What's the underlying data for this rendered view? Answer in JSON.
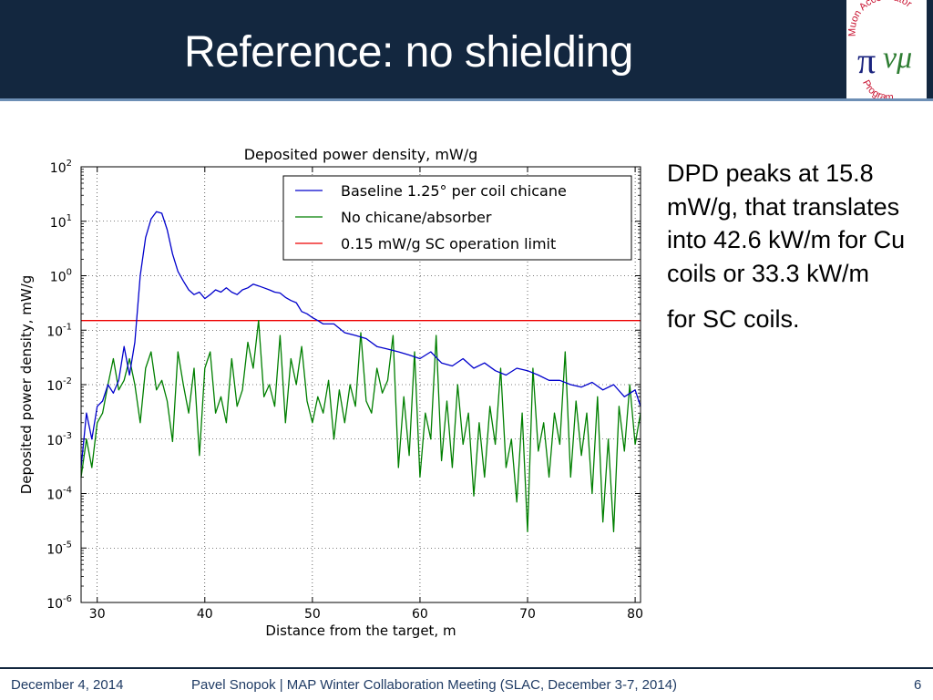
{
  "slide": {
    "title": "Reference: no shielding",
    "body_lines": [
      "DPD peaks at 15.8 mW/g, that translates into 42.6 kW/m for Cu coils or 33.3 kW/m",
      "for SC coils."
    ]
  },
  "logo": {
    "arc_top": "Muon Accelerator",
    "arc_bottom": "Program",
    "symbol": "π",
    "letters": "νμ"
  },
  "footer": {
    "date": "December 4, 2014",
    "center": "Pavel Snopok | MAP Winter Collaboration Meeting (SLAC, December 3-7, 2014)",
    "page": "6"
  },
  "colors": {
    "header_bg": "#13273f",
    "baseline": "#0000cc",
    "no_chicane": "#007f00",
    "limit": "#ee0000"
  },
  "chart_data": {
    "type": "line",
    "title": "Deposited power density, mW/g",
    "xlabel": "Distance from the target, m",
    "ylabel": "Deposited power density, mW/g",
    "xlim": [
      28.5,
      80.5
    ],
    "ylim": [
      1e-06,
      100
    ],
    "yscale": "log",
    "xticks": [
      30,
      40,
      50,
      60,
      70,
      80
    ],
    "yticks": [
      {
        "value": 100,
        "base": "10",
        "exp": "2"
      },
      {
        "value": 10,
        "base": "10",
        "exp": "1"
      },
      {
        "value": 1,
        "base": "10",
        "exp": "0"
      },
      {
        "value": 0.1,
        "base": "10",
        "exp": "-1"
      },
      {
        "value": 0.01,
        "base": "10",
        "exp": "-2"
      },
      {
        "value": 0.001,
        "base": "10",
        "exp": "-3"
      },
      {
        "value": 0.0001,
        "base": "10",
        "exp": "-4"
      },
      {
        "value": 1e-05,
        "base": "10",
        "exp": "-5"
      },
      {
        "value": 1e-06,
        "base": "10",
        "exp": "-6"
      }
    ],
    "grid": true,
    "legend_position": "top-right",
    "series": [
      {
        "name": "Baseline 1.25° per coil chicane",
        "color": "#0000cc",
        "x": [
          28.5,
          29.0,
          29.5,
          30.0,
          30.5,
          31.0,
          31.5,
          32.0,
          32.5,
          33.0,
          33.5,
          34.0,
          34.5,
          35.0,
          35.5,
          36.0,
          36.5,
          37.0,
          37.5,
          38.0,
          38.5,
          39.0,
          39.5,
          40.0,
          40.5,
          41.0,
          41.5,
          42.0,
          42.5,
          43.0,
          43.5,
          44.0,
          44.5,
          45.0,
          45.5,
          46.0,
          46.5,
          47.0,
          47.5,
          48.0,
          48.5,
          49.0,
          49.5,
          50.0,
          50.5,
          51.0,
          52.0,
          53.0,
          54.0,
          55.0,
          56.0,
          57.0,
          58.0,
          59.0,
          60.0,
          61.0,
          62.0,
          63.0,
          64.0,
          65.0,
          66.0,
          67.0,
          68.0,
          69.0,
          70.0,
          71.0,
          72.0,
          73.0,
          74.0,
          75.0,
          76.0,
          77.0,
          78.0,
          79.0,
          80.0,
          80.5
        ],
        "y": [
          0.0003,
          0.003,
          0.001,
          0.004,
          0.005,
          0.01,
          0.007,
          0.012,
          0.05,
          0.015,
          0.06,
          1.0,
          5.0,
          11.0,
          15.0,
          14.0,
          7.0,
          2.5,
          1.2,
          0.8,
          0.55,
          0.45,
          0.5,
          0.38,
          0.45,
          0.55,
          0.5,
          0.6,
          0.5,
          0.45,
          0.55,
          0.6,
          0.7,
          0.65,
          0.6,
          0.55,
          0.5,
          0.48,
          0.4,
          0.35,
          0.32,
          0.22,
          0.2,
          0.17,
          0.15,
          0.13,
          0.13,
          0.09,
          0.08,
          0.07,
          0.05,
          0.045,
          0.04,
          0.035,
          0.03,
          0.04,
          0.025,
          0.022,
          0.03,
          0.02,
          0.025,
          0.018,
          0.015,
          0.02,
          0.018,
          0.015,
          0.012,
          0.012,
          0.01,
          0.009,
          0.011,
          0.008,
          0.01,
          0.006,
          0.008,
          0.004
        ]
      },
      {
        "name": "No chicane/absorber",
        "color": "#007f00",
        "x": [
          28.5,
          29.0,
          29.5,
          30.0,
          30.5,
          31.0,
          31.5,
          32.0,
          32.5,
          33.0,
          33.5,
          34.0,
          34.5,
          35.0,
          35.5,
          36.0,
          36.5,
          37.0,
          37.5,
          38.0,
          38.5,
          39.0,
          39.5,
          40.0,
          40.5,
          41.0,
          41.5,
          42.0,
          42.5,
          43.0,
          43.5,
          44.0,
          44.5,
          45.0,
          45.5,
          46.0,
          46.5,
          47.0,
          47.5,
          48.0,
          48.5,
          49.0,
          49.5,
          50.0,
          50.5,
          51.0,
          51.5,
          52.0,
          52.5,
          53.0,
          53.5,
          54.0,
          54.5,
          55.0,
          55.5,
          56.0,
          56.5,
          57.0,
          57.5,
          58.0,
          58.5,
          59.0,
          59.5,
          60.0,
          60.5,
          61.0,
          61.5,
          62.0,
          62.5,
          63.0,
          63.5,
          64.0,
          64.5,
          65.0,
          65.5,
          66.0,
          66.5,
          67.0,
          67.5,
          68.0,
          68.5,
          69.0,
          69.5,
          70.0,
          70.5,
          71.0,
          71.5,
          72.0,
          72.5,
          73.0,
          73.5,
          74.0,
          74.5,
          75.0,
          75.5,
          76.0,
          76.5,
          77.0,
          77.5,
          78.0,
          78.5,
          79.0,
          79.5,
          80.0,
          80.5
        ],
        "y": [
          0.0002,
          0.001,
          0.0003,
          0.002,
          0.003,
          0.01,
          0.03,
          0.008,
          0.012,
          0.03,
          0.01,
          0.002,
          0.02,
          0.04,
          0.008,
          0.012,
          0.005,
          0.0009,
          0.04,
          0.01,
          0.003,
          0.02,
          0.0005,
          0.02,
          0.04,
          0.003,
          0.006,
          0.002,
          0.03,
          0.004,
          0.008,
          0.06,
          0.02,
          0.15,
          0.006,
          0.01,
          0.004,
          0.08,
          0.002,
          0.03,
          0.01,
          0.05,
          0.005,
          0.002,
          0.006,
          0.003,
          0.012,
          0.001,
          0.008,
          0.002,
          0.01,
          0.004,
          0.09,
          0.005,
          0.003,
          0.02,
          0.007,
          0.012,
          0.08,
          0.0003,
          0.006,
          0.0005,
          0.04,
          0.0002,
          0.003,
          0.001,
          0.08,
          0.0004,
          0.005,
          0.0003,
          0.01,
          0.0008,
          0.003,
          9e-05,
          0.002,
          0.0002,
          0.004,
          0.0008,
          0.02,
          0.0003,
          0.001,
          7e-05,
          0.003,
          2e-05,
          0.02,
          0.0006,
          0.002,
          0.0002,
          0.003,
          0.0008,
          0.04,
          0.0002,
          0.005,
          0.0005,
          0.003,
          0.0001,
          0.006,
          3e-05,
          0.001,
          2e-05,
          0.004,
          0.0006,
          0.01,
          0.0008,
          0.003
        ]
      },
      {
        "name": "0.15 mW/g SC operation limit",
        "color": "#ee0000",
        "x": [
          28.5,
          80.5
        ],
        "y": [
          0.15,
          0.15
        ]
      }
    ]
  }
}
